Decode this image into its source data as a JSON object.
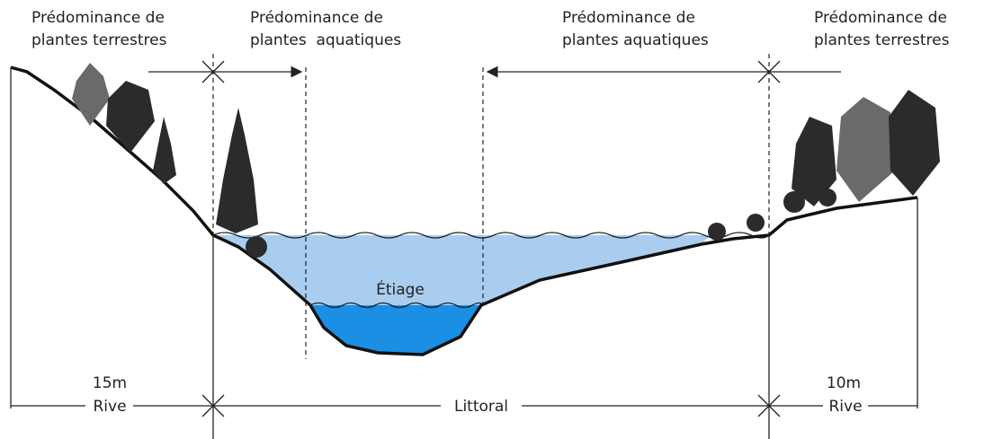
{
  "zones": [
    {
      "lines": [
        "Prédominance de",
        "plantes terrestres"
      ]
    },
    {
      "lines": [
        "Prédominance de",
        "plantes  aquatiques"
      ]
    },
    {
      "lines": [
        "Prédominance de",
        "plantes aquatiques"
      ]
    },
    {
      "lines": [
        "Prédominance de",
        "plantes terrestres"
      ]
    }
  ],
  "water_label": "Étiage",
  "dimensions": {
    "left_width": "15m",
    "left_name": "Rive",
    "middle_name": "Littoral",
    "right_width": "10m",
    "right_name": "Rive"
  }
}
